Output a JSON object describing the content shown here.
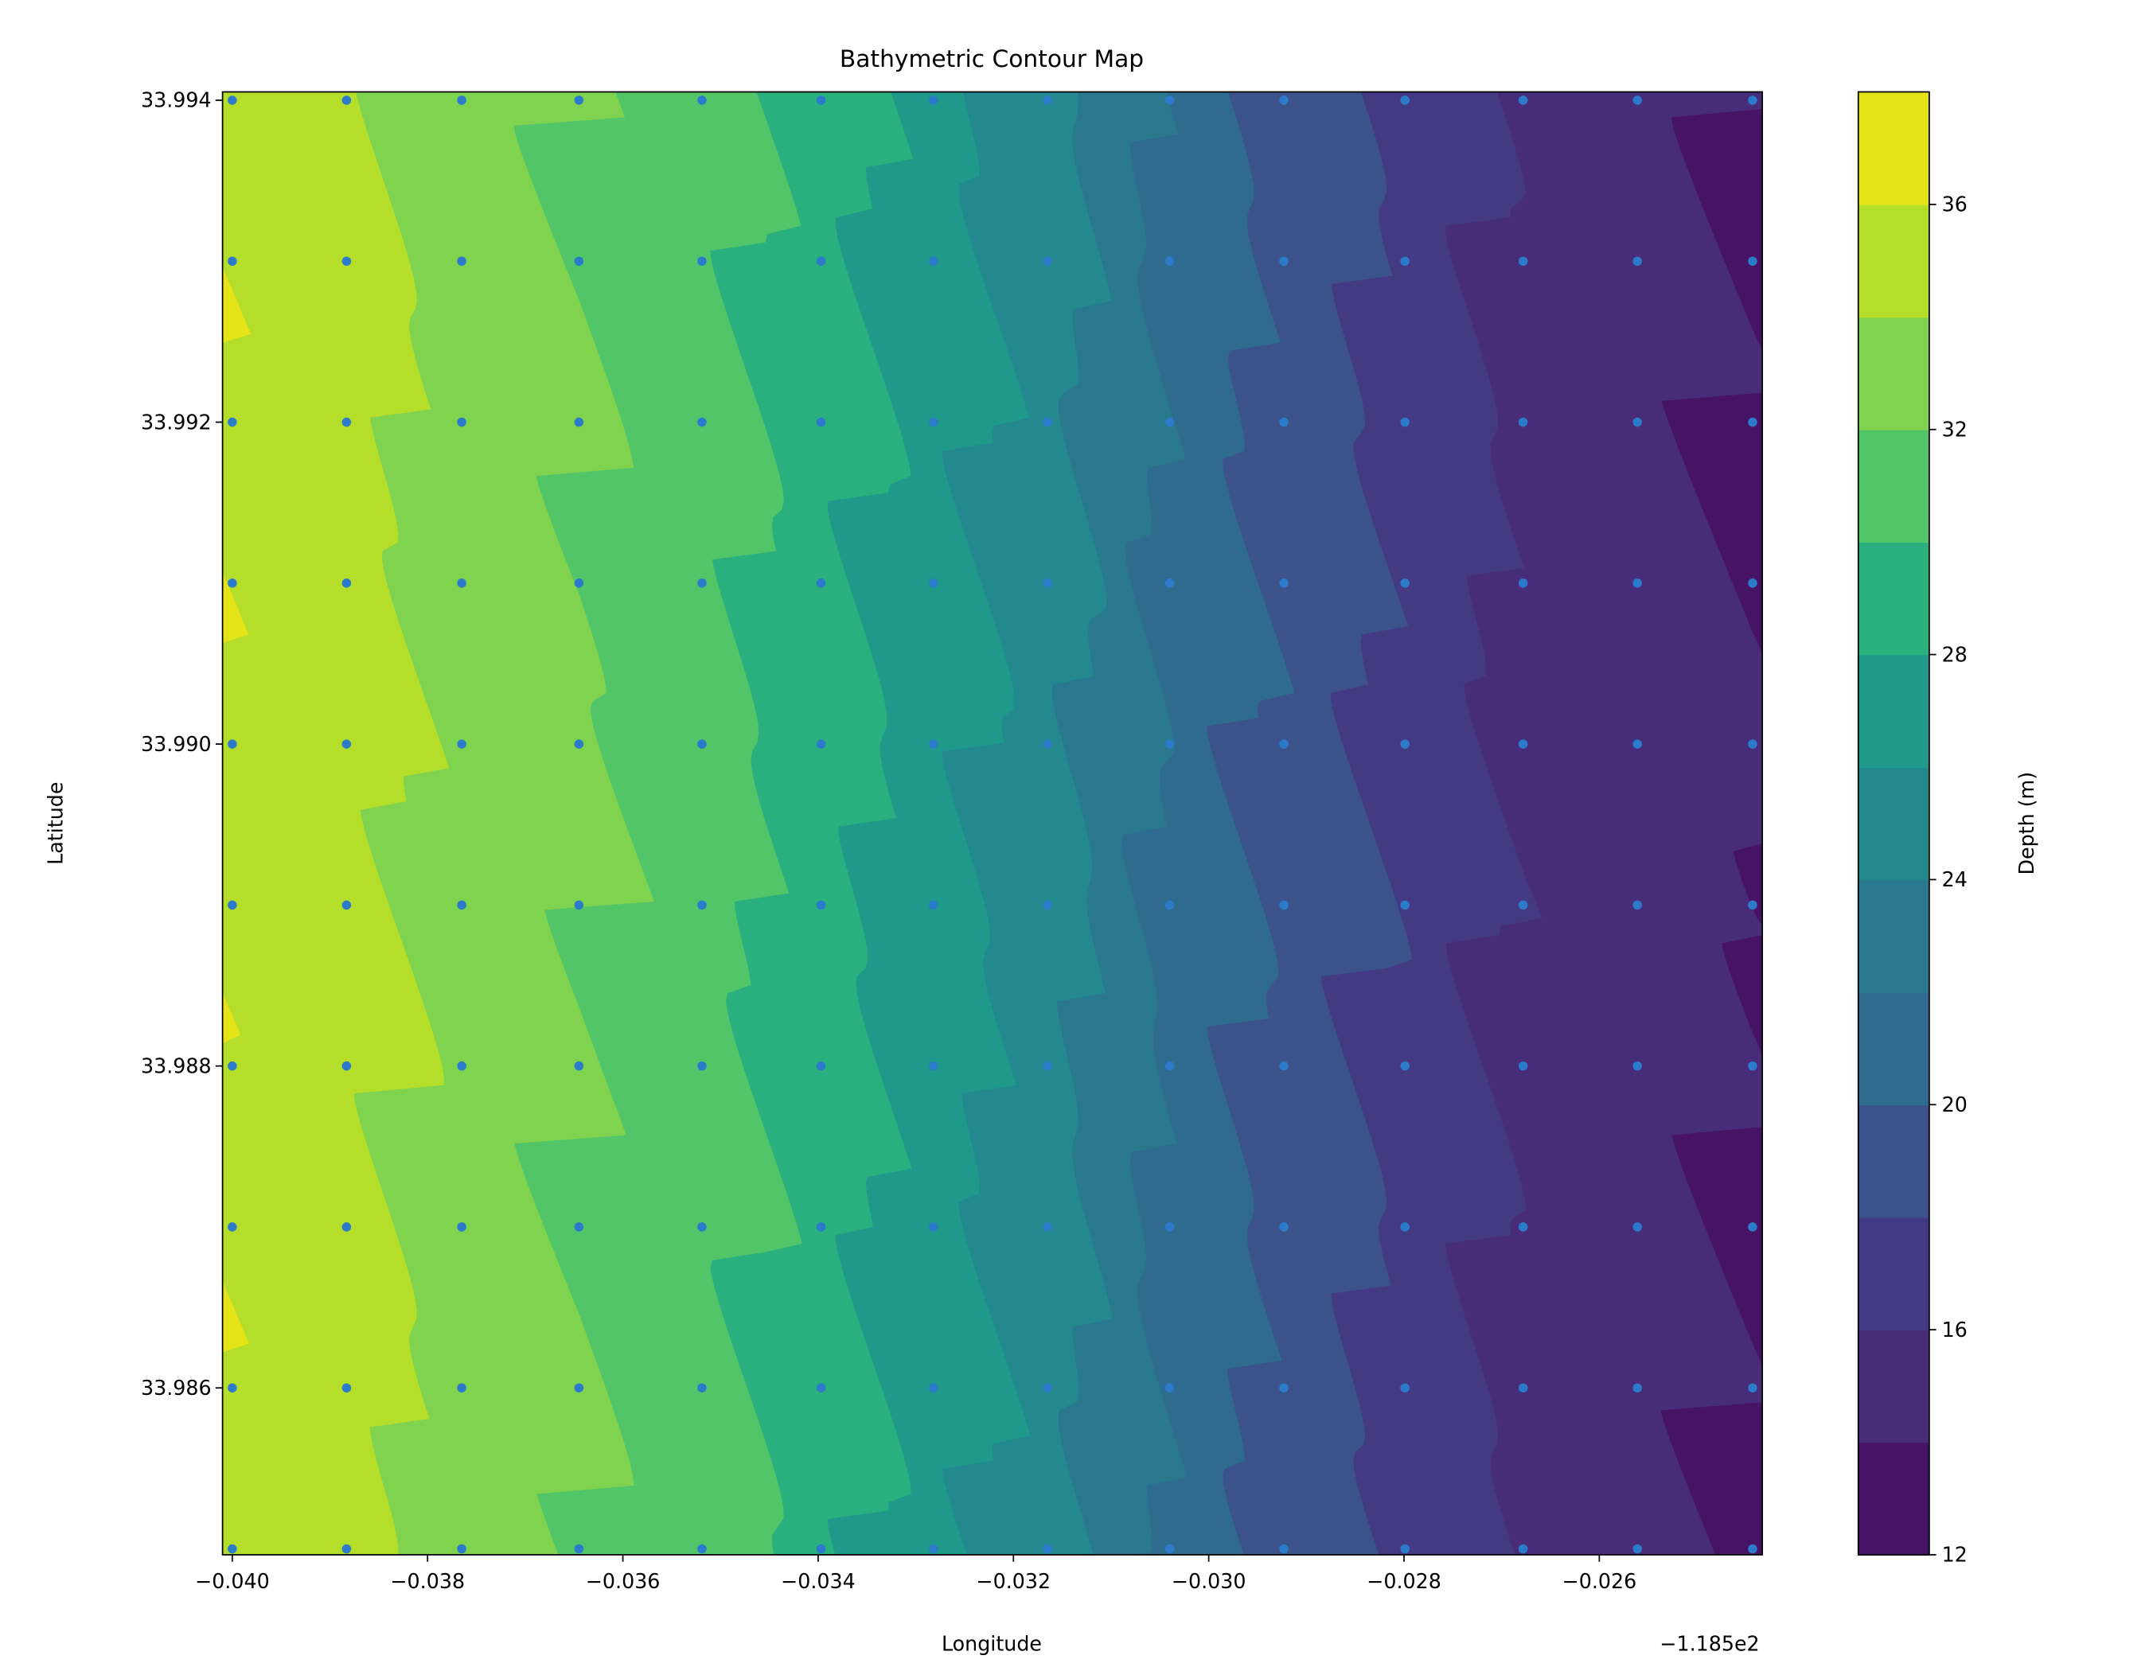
{
  "chart_data": {
    "type": "contour",
    "title": "Bathymetric Contour Map",
    "xlabel": "Longitude",
    "ylabel": "Latitude",
    "x_offset_label": "−1.185e2",
    "x_offset": -118.5,
    "xlim": [
      -0.0401,
      -0.02433
    ],
    "ylim": [
      33.98497,
      33.99405
    ],
    "xticks": [
      -0.04,
      -0.038,
      -0.036,
      -0.034,
      -0.032,
      -0.03,
      -0.028,
      -0.026
    ],
    "xtick_labels": [
      "−0.040",
      "−0.038",
      "−0.036",
      "−0.034",
      "−0.032",
      "−0.030",
      "−0.028",
      "−0.026"
    ],
    "yticks": [
      33.994,
      33.992,
      33.99,
      33.988,
      33.986
    ],
    "ytick_labels": [
      "33.994",
      "33.992",
      "33.990",
      "33.988",
      "33.986"
    ],
    "levels": [
      12,
      14,
      16,
      18,
      20,
      22,
      24,
      26,
      28,
      30,
      32,
      34,
      36,
      38
    ],
    "band_colors": [
      "#471365",
      "#472c7a",
      "#443983",
      "#3b528b",
      "#2f6b8e",
      "#2a788e",
      "#23898e",
      "#1f9a8a",
      "#2ab07f",
      "#52c569",
      "#7fd34e",
      "#b5de2b",
      "#e5e419"
    ],
    "colorbar": {
      "label": "Depth (m)",
      "ticks": [
        12,
        16,
        20,
        24,
        28,
        32,
        36
      ],
      "tick_labels": [
        "12",
        "16",
        "20",
        "24",
        "28",
        "32",
        "36"
      ]
    },
    "sample_longitudes": [
      -0.04,
      -0.03883,
      -0.03765,
      -0.03645,
      -0.03519,
      -0.03397,
      -0.03282,
      -0.03165,
      -0.0304,
      -0.02923,
      -0.02799,
      -0.02678,
      -0.02561,
      -0.02443
    ],
    "sample_latitudes": [
      33.994,
      33.993,
      33.992,
      33.991,
      33.99,
      33.989,
      33.988,
      33.987,
      33.986,
      33.985
    ],
    "column_mean_depths": [
      35.5,
      35,
      33.2,
      32.5,
      31,
      29,
      27,
      25,
      21.5,
      19.5,
      17.5,
      15.6,
      15,
      14.4
    ],
    "point_color": "#2b7bca"
  }
}
